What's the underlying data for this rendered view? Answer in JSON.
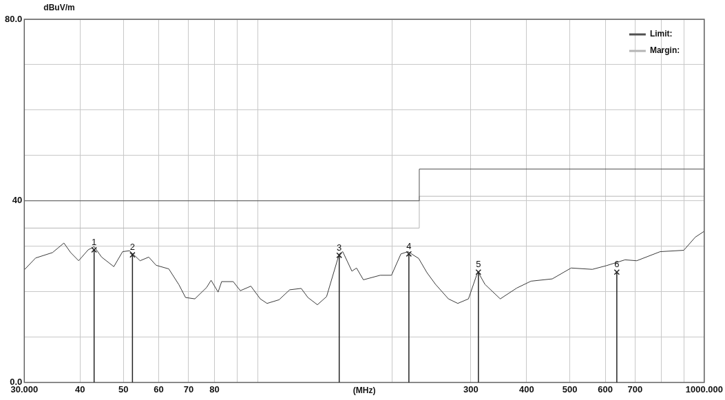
{
  "chart_data": {
    "type": "line",
    "ylabel": "dBuV/m",
    "xlabel": "(MHz)",
    "log": "x",
    "grid": true,
    "legend": "top right",
    "marker": "none",
    "xlim": [
      30,
      1000
    ],
    "ylim": [
      0,
      80
    ],
    "xticks": [
      {
        "value": 30,
        "label": "30.000"
      },
      40,
      50,
      60,
      70,
      80,
      {
        "value": 90,
        "label": null
      },
      {
        "value": 100,
        "label": null
      },
      {
        "value": 200,
        "label": null
      },
      300,
      400,
      500,
      600,
      700,
      {
        "value": 800,
        "label": null
      },
      {
        "value": 900,
        "label": null
      },
      {
        "value": 1000,
        "label": "1000.000"
      }
    ],
    "yticks": [
      {
        "value": 0,
        "label": "0.0"
      },
      {
        "value": 10,
        "label": null
      },
      {
        "value": 20,
        "label": null
      },
      {
        "value": 30,
        "label": null
      },
      40,
      {
        "value": 50,
        "label": null
      },
      {
        "value": 60,
        "label": null
      },
      {
        "value": 70,
        "label": null
      },
      {
        "value": 80,
        "label": "80.0"
      }
    ],
    "series": [
      {
        "color": "#3a3a3a",
        "x": [
          30,
          31.8,
          34.7,
          36.8,
          38.1,
          39.7,
          41.7,
          43.0,
          44.7,
          47.6,
          49.8,
          51.6,
          54.5,
          57.0,
          59.2,
          63.2,
          66.6,
          68.9,
          72.3,
          76.8,
          78.6,
          81.5,
          83.0,
          88.1,
          91.4,
          96.5,
          101.3,
          104.9,
          111.6,
          117.9,
          125.1,
          129.5,
          136.0,
          142.6,
          152.2,
          155.0,
          162.5,
          166.4,
          172.4,
          188.0,
          199.3,
          209.2,
          217.0,
          229.3,
          239.2,
          250.1,
          267.3,
          280.5,
          296.4,
          311.1,
          322.7,
          349.2,
          380.5,
          409.2,
          456.6,
          503.3,
          561.4,
          602.8,
          664.5,
          705.8,
          796.6,
          899.6,
          954.8,
          1000
        ],
        "values": [
          24.8,
          27.4,
          28.6,
          30.7,
          28.6,
          26.8,
          29.2,
          29.9,
          27.6,
          25.5,
          28.8,
          29.0,
          26.8,
          27.6,
          25.8,
          25.0,
          21.5,
          18.7,
          18.4,
          20.9,
          22.5,
          19.9,
          22.2,
          22.2,
          20.2,
          21.2,
          18.4,
          17.4,
          18.2,
          20.4,
          20.7,
          18.7,
          17.1,
          18.9,
          28.3,
          28.8,
          24.5,
          25.2,
          22.6,
          23.6,
          23.6,
          28.3,
          28.8,
          27.3,
          24.2,
          21.6,
          18.4,
          17.4,
          18.4,
          24.4,
          21.6,
          18.4,
          20.8,
          22.3,
          22.8,
          25.2,
          24.9,
          25.7,
          27.0,
          26.8,
          28.8,
          29.1,
          32.0,
          33.3
        ]
      },
      {
        "type": "step",
        "name": "Limit:",
        "color": "#505050",
        "x": [
          30,
          230,
          1000
        ],
        "values": [
          40,
          47,
          47
        ]
      },
      {
        "type": "step",
        "name": "Margin:",
        "color": "#b4b4b4",
        "x": [
          30,
          230,
          1000
        ],
        "values": [
          34,
          41,
          41
        ]
      },
      {
        "type": "lollipop",
        "marker": "cross",
        "color": "#222222",
        "x": [
          43.0,
          52.4,
          152.2,
          218,
          312,
          637
        ],
        "values": [
          29.2,
          28.1,
          28.0,
          28.3,
          24.3,
          24.3
        ]
      }
    ],
    "annotations": [
      {
        "text": "1",
        "x": 43.0,
        "y": 29.2
      },
      {
        "text": "2",
        "x": 52.4,
        "y": 28.1
      },
      {
        "text": "3",
        "x": 152.2,
        "y": 28.0
      },
      {
        "text": "4",
        "x": 218,
        "y": 28.3
      },
      {
        "text": "5",
        "x": 312,
        "y": 24.3
      },
      {
        "text": "6",
        "x": 637,
        "y": 24.3
      }
    ]
  }
}
